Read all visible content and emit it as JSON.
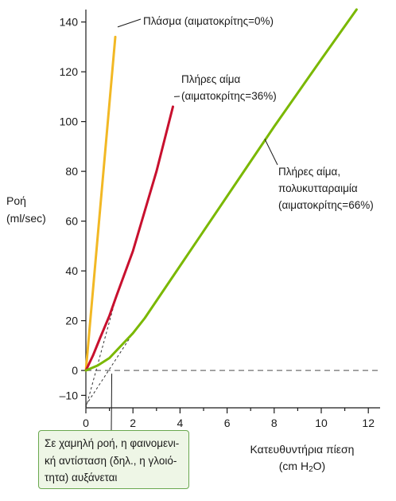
{
  "chart_data": {
    "type": "line",
    "title": "",
    "xlabel_main": "Κατευθυντήρια πίεση",
    "xlabel_unit_prefix": "(cm H",
    "xlabel_unit_sub": "2",
    "xlabel_unit_suffix": "O)",
    "ylabel_line1": "Ροή",
    "ylabel_line2": "(ml/sec)",
    "xlim": [
      0,
      12.5
    ],
    "ylim": [
      -15,
      145
    ],
    "x_ticks": [
      0,
      2,
      4,
      6,
      8,
      10,
      12
    ],
    "x_tick_labels": [
      "0",
      "2",
      "4",
      "6",
      "8",
      "10",
      "12"
    ],
    "y_ticks": [
      -10,
      0,
      20,
      40,
      60,
      80,
      100,
      120,
      140
    ],
    "y_tick_labels": [
      "–10",
      "0",
      "20",
      "40",
      "60",
      "80",
      "100",
      "120",
      "140"
    ],
    "grid": false,
    "series": [
      {
        "name": "Πλάσμα (αιματοκρίτης=0%)",
        "color": "#f2b824",
        "x": [
          0,
          1.25
        ],
        "y": [
          0,
          134
        ]
      },
      {
        "name": "Πλήρες αίμα (αιματοκρίτης=36%)",
        "color": "#c8102e",
        "x": [
          0,
          0.3,
          0.6,
          1.0,
          1.3,
          2.0,
          3.0,
          3.7
        ],
        "y": [
          0,
          6,
          13,
          22,
          30,
          48,
          80,
          106
        ]
      },
      {
        "name": "Πλήρες αίμα, πολυκυτταραιμία (αιματοκρίτης=66%)",
        "color": "#7ab800",
        "x": [
          0,
          0.5,
          1.0,
          1.5,
          2.0,
          2.5,
          3.0,
          4.0,
          6.0,
          8.0,
          10.0,
          11.5
        ],
        "y": [
          0,
          2,
          5,
          10,
          15,
          21,
          28,
          42,
          70,
          98,
          125,
          145
        ]
      }
    ],
    "reference_lines": [
      {
        "type": "horizontal",
        "y": 0,
        "style": "dashed",
        "color": "#888888"
      },
      {
        "type": "extrapolation",
        "x": [
          0,
          1.3
        ],
        "y": [
          -15,
          30
        ],
        "style": "dashed"
      },
      {
        "type": "extrapolation",
        "x": [
          0,
          2.0
        ],
        "y": [
          -14,
          15
        ],
        "style": "dashed"
      }
    ],
    "annotations": [
      {
        "lines": [
          "Πλάσμα (αιματοκρίτης=0%)"
        ],
        "series": 0
      },
      {
        "lines": [
          "Πλήρες αίμα",
          "(αιματοκρίτης=36%)"
        ],
        "series": 1
      },
      {
        "lines": [
          "Πλήρες αίμα,",
          "πολυκυτταραιμία",
          "(αιματοκρίτης=66%)"
        ],
        "series": 2
      }
    ],
    "callout": {
      "lines": [
        "Σε χαμηλή ροή, η φαινομενι-",
        "κή αντίσταση (δηλ., η γλοιό-",
        "τητα) αυξάνεται"
      ],
      "points_to": {
        "x": 1.1,
        "y": 0
      }
    }
  }
}
